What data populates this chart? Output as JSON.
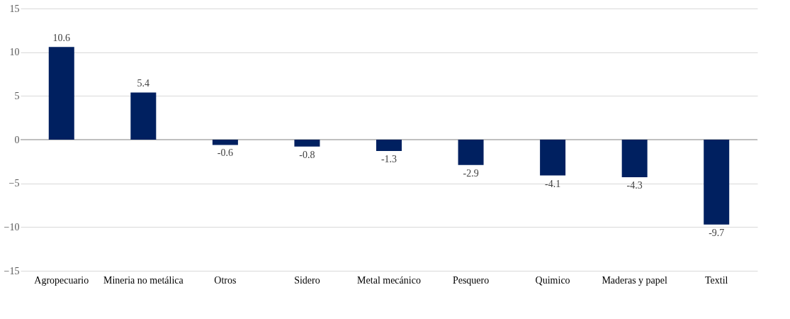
{
  "chart_data": {
    "type": "bar",
    "categories": [
      "Agropecuario",
      "Mineria no metálica",
      "Otros",
      "Sidero",
      "Metal mecánico",
      "Pesquero",
      "Quimico",
      "Maderas y papel",
      "Textil"
    ],
    "values": [
      10.6,
      5.4,
      -0.6,
      -0.8,
      -1.3,
      -2.9,
      -4.1,
      -4.3,
      -9.7
    ],
    "color": "#002060",
    "ylim": [
      -15,
      15
    ],
    "yticks": [
      -15,
      -10,
      -5,
      0,
      5,
      10,
      15
    ],
    "grid": "y",
    "data_labels": true
  }
}
